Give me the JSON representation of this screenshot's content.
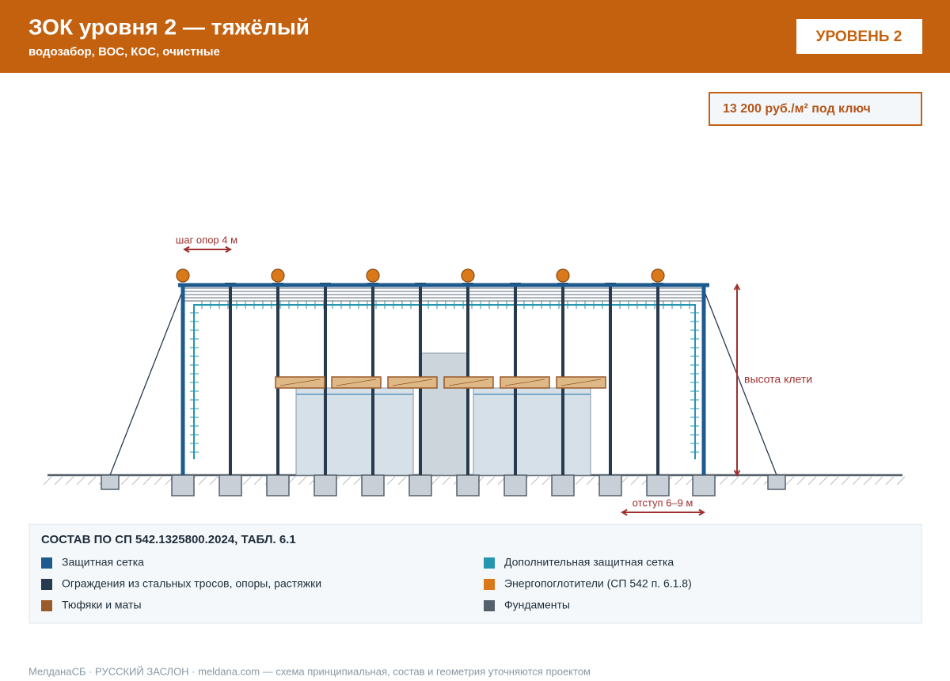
{
  "header": {
    "title": "ЗОК уровня 2 — тяжёлый",
    "subtitle": "водозабор, ВОС, КОС, очистные",
    "badge": "УРОВЕНЬ 2"
  },
  "price": "13 200 руб./м² под ключ",
  "diagram": {
    "step_label": "шаг опор 4 м",
    "height_label": "высота клети",
    "offset_label": "отступ 6–9 м"
  },
  "legend": {
    "title": "СОСТАВ ПО СП 542.1325800.2024, ТАБЛ. 6.1",
    "items": [
      {
        "label": "Защитная сетка",
        "color": "#1d5a8e"
      },
      {
        "label": "Дополнительная защитная сетка",
        "color": "#2596b0"
      },
      {
        "label": "Ограждения из стальных тросов, опоры, растяжки",
        "color": "#283a4e"
      },
      {
        "label": "Энергопоглотители (СП 542 п. 6.1.8)",
        "color": "#d9791a"
      },
      {
        "label": "Тюфяки и маты",
        "color": "#9a5a2a"
      },
      {
        "label": "Фундаменты",
        "color": "#56606a"
      }
    ]
  },
  "footer": "МелданаСБ · РУССКИЙ ЗАСЛОН · meldana.com — схема принципиальная, состав и геометрия уточняются проектом"
}
